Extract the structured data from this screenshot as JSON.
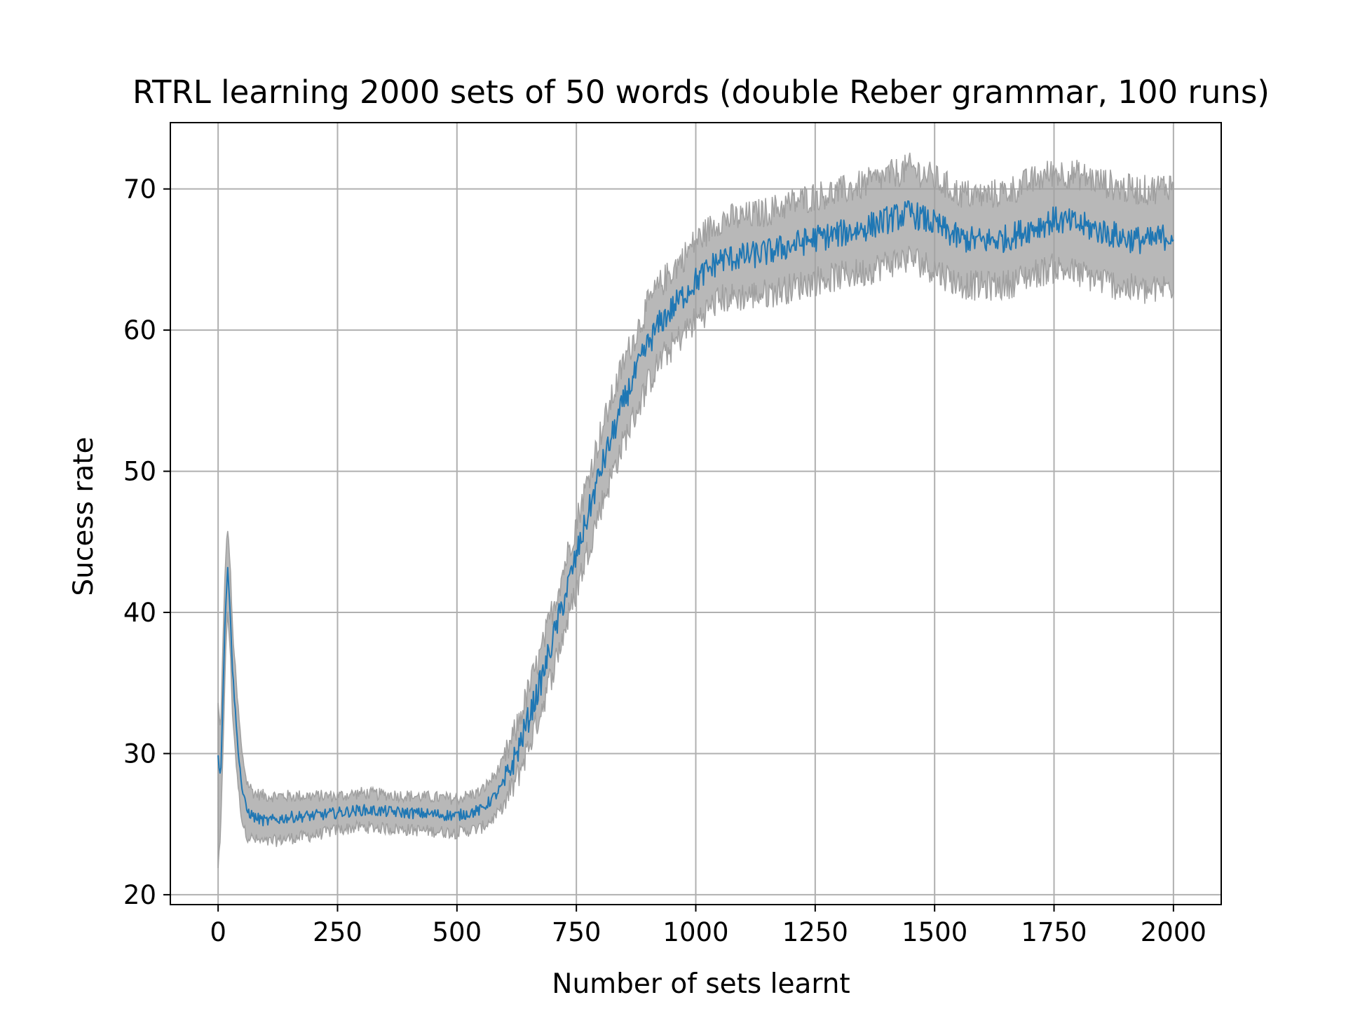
{
  "chart_data": {
    "type": "line",
    "title": "RTRL learning 2000 sets of 50 words (double Reber grammar, 100 runs)",
    "xlabel": "Number of sets learnt",
    "ylabel": "Sucess rate",
    "xlim": [
      -100,
      2100
    ],
    "ylim": [
      19.3,
      74.7
    ],
    "xticks": [
      0,
      250,
      500,
      750,
      1000,
      1250,
      1500,
      1750,
      2000
    ],
    "yticks": [
      20,
      30,
      40,
      50,
      60,
      70
    ],
    "grid": true,
    "legend": "none",
    "colors": {
      "mean": "#1f77b4",
      "band": "#a0a0a0",
      "grid": "#b0b0b0"
    },
    "series": [
      {
        "role": "mean",
        "x": [
          0,
          5,
          10,
          15,
          20,
          25,
          30,
          40,
          50,
          60,
          75,
          100,
          150,
          200,
          250,
          300,
          350,
          400,
          450,
          500,
          550,
          580,
          600,
          625,
          650,
          675,
          700,
          725,
          750,
          775,
          800,
          825,
          850,
          875,
          900,
          925,
          950,
          975,
          1000,
          1050,
          1100,
          1150,
          1200,
          1250,
          1300,
          1350,
          1400,
          1450,
          1500,
          1550,
          1600,
          1650,
          1700,
          1750,
          1800,
          1850,
          1900,
          1950,
          2000
        ],
        "values": [
          30.0,
          28.0,
          34.0,
          40.0,
          43.0,
          40.5,
          36.0,
          31.0,
          27.5,
          26.0,
          25.5,
          25.2,
          25.5,
          25.6,
          25.8,
          26.0,
          25.9,
          25.8,
          25.7,
          25.6,
          26.0,
          27.0,
          28.0,
          30.0,
          32.5,
          35.0,
          38.0,
          41.0,
          44.0,
          47.0,
          50.0,
          52.5,
          55.0,
          57.0,
          59.0,
          60.5,
          61.5,
          62.5,
          63.5,
          65.0,
          65.2,
          65.5,
          66.0,
          66.5,
          66.8,
          67.2,
          67.8,
          68.3,
          67.5,
          66.5,
          66.3,
          66.5,
          67.2,
          67.8,
          67.5,
          67.0,
          66.5,
          66.3,
          66.8
        ]
      }
    ],
    "band": {
      "x": [
        0,
        5,
        10,
        15,
        20,
        25,
        30,
        40,
        50,
        60,
        75,
        100,
        150,
        200,
        250,
        300,
        350,
        400,
        450,
        500,
        550,
        580,
        600,
        625,
        650,
        675,
        700,
        725,
        750,
        775,
        800,
        825,
        850,
        875,
        900,
        925,
        950,
        975,
        1000,
        1050,
        1100,
        1150,
        1200,
        1250,
        1300,
        1350,
        1400,
        1450,
        1500,
        1550,
        1600,
        1650,
        1700,
        1750,
        1800,
        1850,
        1900,
        1950,
        2000
      ],
      "upper": [
        33.5,
        31.5,
        37.5,
        43.5,
        46.0,
        43.5,
        39.0,
        34.0,
        30.0,
        28.0,
        27.2,
        27.0,
        27.0,
        27.0,
        27.0,
        27.2,
        27.1,
        27.0,
        26.9,
        26.8,
        27.3,
        28.5,
        29.6,
        31.8,
        34.5,
        37.0,
        40.2,
        43.3,
        46.4,
        49.5,
        52.6,
        55.2,
        57.8,
        59.8,
        61.8,
        63.2,
        64.2,
        65.2,
        66.3,
        67.8,
        68.0,
        68.4,
        69.0,
        69.5,
        69.8,
        70.3,
        70.9,
        71.5,
        70.7,
        69.7,
        69.5,
        69.8,
        70.5,
        71.2,
        71.0,
        70.5,
        70.0,
        69.9,
        70.4
      ],
      "lower": [
        22.0,
        24.0,
        30.0,
        36.5,
        40.0,
        37.5,
        33.0,
        28.3,
        25.2,
        24.2,
        23.9,
        23.7,
        24.0,
        24.2,
        24.6,
        24.8,
        24.7,
        24.6,
        24.5,
        24.4,
        24.7,
        25.5,
        26.4,
        28.2,
        30.5,
        33.0,
        35.8,
        38.7,
        41.6,
        44.5,
        47.4,
        49.8,
        52.2,
        54.2,
        56.2,
        57.8,
        58.8,
        59.8,
        60.7,
        62.2,
        62.4,
        62.6,
        63.0,
        63.5,
        63.8,
        64.1,
        64.7,
        65.1,
        64.3,
        63.3,
        63.1,
        63.2,
        63.9,
        64.4,
        64.0,
        63.5,
        63.0,
        62.7,
        63.2
      ]
    }
  }
}
